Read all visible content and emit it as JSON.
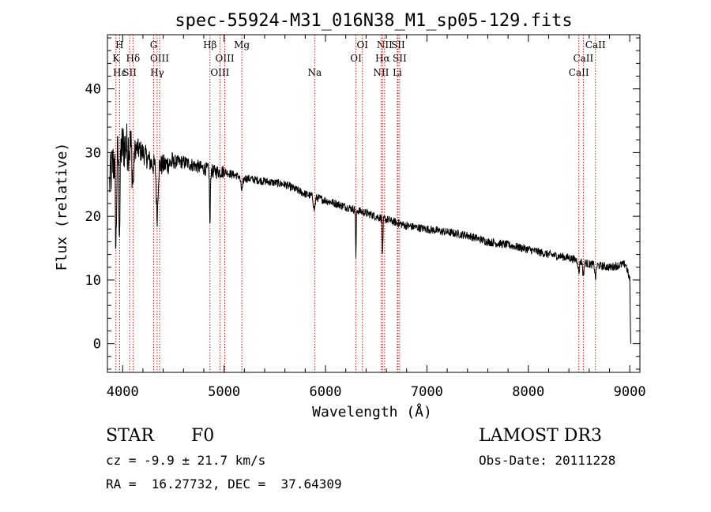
{
  "chart_data": {
    "type": "line",
    "title": "spec-55924-M31_016N38_M1_sp05-129.fits",
    "xlabel": "Wavelength (Å)",
    "ylabel": "Flux (relative)",
    "xlim": [
      3850,
      9100
    ],
    "ylim": [
      -4.5,
      48.5
    ],
    "x_ticks": [
      4000,
      5000,
      6000,
      7000,
      8000,
      9000
    ],
    "y_ticks": [
      0,
      10,
      20,
      30,
      40
    ],
    "series": [
      {
        "name": "spectrum",
        "continuum": [
          [
            3870,
            25
          ],
          [
            3900,
            28
          ],
          [
            3950,
            30
          ],
          [
            4000,
            31
          ],
          [
            4100,
            31
          ],
          [
            4200,
            30
          ],
          [
            4300,
            28
          ],
          [
            4400,
            28
          ],
          [
            4500,
            28.5
          ],
          [
            4600,
            28.5
          ],
          [
            4700,
            28
          ],
          [
            4800,
            27.5
          ],
          [
            4900,
            27
          ],
          [
            5000,
            27
          ],
          [
            5200,
            26
          ],
          [
            5400,
            25.5
          ],
          [
            5600,
            25
          ],
          [
            5800,
            23.5
          ],
          [
            6000,
            22.5
          ],
          [
            6200,
            21.5
          ],
          [
            6400,
            20.5
          ],
          [
            6600,
            19.5
          ],
          [
            6800,
            18.5
          ],
          [
            7000,
            18
          ],
          [
            7200,
            17.5
          ],
          [
            7400,
            17
          ],
          [
            7600,
            16
          ],
          [
            7800,
            15.5
          ],
          [
            8000,
            14.8
          ],
          [
            8200,
            14
          ],
          [
            8400,
            13.5
          ],
          [
            8600,
            12.5
          ],
          [
            8800,
            12
          ],
          [
            8960,
            12.5
          ],
          [
            9000,
            10
          ]
        ],
        "absorption": [
          [
            3934,
            14,
            6
          ],
          [
            3969,
            12,
            6
          ],
          [
            4102,
            6,
            8
          ],
          [
            4340,
            8,
            8
          ],
          [
            4861,
            9,
            4
          ],
          [
            5175,
            2,
            10
          ],
          [
            5890,
            2,
            8
          ],
          [
            6300,
            8,
            3
          ],
          [
            6563,
            6,
            4
          ],
          [
            8498,
            2,
            6
          ],
          [
            8542,
            2,
            6
          ],
          [
            8662,
            2,
            6
          ]
        ],
        "end_drop": [
          [
            9005,
            4
          ],
          [
            9010,
            0
          ]
        ]
      }
    ],
    "lines": [
      {
        "label": "H",
        "wave": 3969,
        "row": 0
      },
      {
        "label": "K",
        "wave": 3934,
        "row": 1
      },
      {
        "label": "Hε",
        "wave": 3970,
        "row": 2
      },
      {
        "label": "Hδ",
        "wave": 4102,
        "row": 1
      },
      {
        "label": "SII",
        "wave": 4069,
        "row": 2
      },
      {
        "label": "G",
        "wave": 4306,
        "row": 0
      },
      {
        "label": "OIII",
        "wave": 4364,
        "row": 1
      },
      {
        "label": "Hγ",
        "wave": 4340,
        "row": 2
      },
      {
        "label": "Hβ",
        "wave": 4861,
        "row": 0
      },
      {
        "label": "OIII",
        "wave": 5007,
        "row": 1
      },
      {
        "label": "OIII",
        "wave": 4959,
        "row": 2
      },
      {
        "label": "Mg",
        "wave": 5175,
        "row": 0
      },
      {
        "label": "Na",
        "wave": 5893,
        "row": 2
      },
      {
        "label": "OI",
        "wave": 6364,
        "row": 0
      },
      {
        "label": "OI",
        "wave": 6300,
        "row": 1
      },
      {
        "label": "NII",
        "wave": 6583,
        "row": 0
      },
      {
        "label": "SII",
        "wave": 6716,
        "row": 0
      },
      {
        "label": "Hα",
        "wave": 6563,
        "row": 1
      },
      {
        "label": "SII",
        "wave": 6731,
        "row": 1
      },
      {
        "label": "NII",
        "wave": 6548,
        "row": 2
      },
      {
        "label": "Li",
        "wave": 6708,
        "row": 2
      },
      {
        "label": "CaII",
        "wave": 8662,
        "row": 0
      },
      {
        "label": "CaII",
        "wave": 8542,
        "row": 1
      },
      {
        "label": "CaII",
        "wave": 8498,
        "row": 2
      }
    ]
  },
  "colors": {
    "line_marker": "#cc0000",
    "spectrum": "#000000",
    "axis": "#000000"
  },
  "info": {
    "class": "STAR",
    "subclass": "F0",
    "survey": "LAMOST DR3",
    "cz": "cz = -9.9 ± 21.7 km/s",
    "obs_date": "Obs-Date: 20111228",
    "coords": "RA =  16.27732, DEC =  37.64309"
  }
}
